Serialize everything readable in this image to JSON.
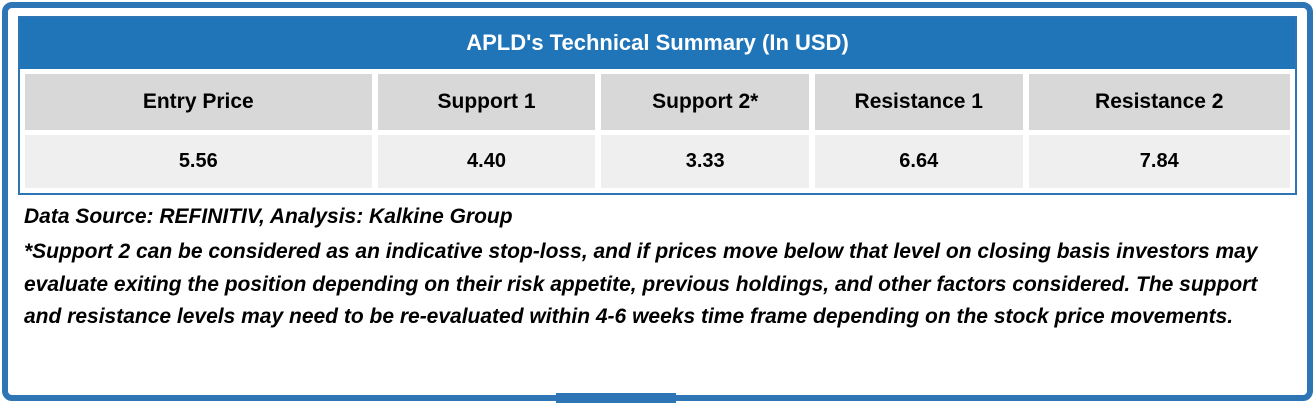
{
  "title_bar": {
    "text": "APLD's Technical Summary (In USD)"
  },
  "table": {
    "columns": [
      "Entry Price",
      "Support 1",
      "Support 2*",
      "Resistance 1",
      "Resistance 2"
    ],
    "values": [
      "5.56",
      "4.40",
      "3.33",
      "6.64",
      "7.84"
    ]
  },
  "chart_data": {
    "type": "table",
    "title": "APLD's Technical Summary (In USD)",
    "columns": [
      "Entry Price",
      "Support 1",
      "Support 2*",
      "Resistance 1",
      "Resistance 2"
    ],
    "rows": [
      [
        "5.56",
        "4.40",
        "3.33",
        "6.64",
        "7.84"
      ]
    ]
  },
  "notes": {
    "source_line": "Data Source: REFINITIV, Analysis: Kalkine Group",
    "disclaimer": "*Support 2 can be considered as an indicative stop-loss, and if prices move below that level on closing basis investors may evaluate exiting the position depending on their risk appetite, previous holdings, and other factors considered. The support and resistance levels may need to be re-evaluated within 4-6 weeks time frame depending on the stock price movements."
  },
  "colors": {
    "frame_border": "#2E75B6",
    "title_bar_bg": "#2074B8",
    "header_cell_bg": "#D8D8D8",
    "value_cell_bg": "#EFEFEF",
    "text": "#000000"
  }
}
